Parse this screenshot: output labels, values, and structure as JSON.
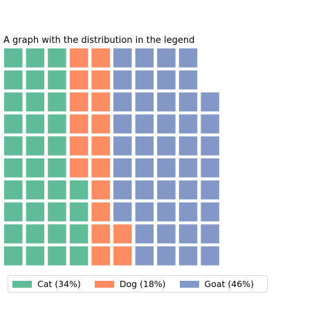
{
  "chart_data": {
    "type": "waffle",
    "title": "A graph with the distribution in the legend",
    "rows": 10,
    "columns": 15,
    "fill_order": "column-major-bottom-up",
    "series": [
      {
        "name": "Cat",
        "label": "Cat (34%)",
        "value": 34,
        "percent": 34,
        "color": "#5fbb98"
      },
      {
        "name": "Dog",
        "label": "Dog (18%)",
        "value": 18,
        "percent": 18,
        "color": "#fc8d62"
      },
      {
        "name": "Goat",
        "label": "Goat (46%)",
        "value": 46,
        "percent": 46,
        "color": "#8498c8"
      }
    ],
    "legend_position": "bottom-left"
  }
}
